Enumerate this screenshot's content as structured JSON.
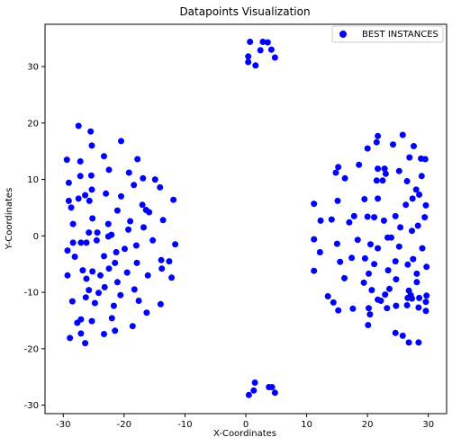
{
  "chart_data": {
    "type": "scatter",
    "title": "Datapoints Visualization",
    "xlabel": "X-Coordinates",
    "ylabel": "Y-Coordinates",
    "xlim": [
      -33,
      33
    ],
    "ylim": [
      -31.5,
      37.5
    ],
    "xticks": [
      -30,
      -20,
      -10,
      0,
      10,
      20,
      30
    ],
    "yticks": [
      -30,
      -20,
      -10,
      0,
      10,
      20,
      30
    ],
    "grid": false,
    "legend": "top-right",
    "series": [
      {
        "name": "BEST INSTANCES",
        "color": "#0000ff",
        "points": [
          [
            0.7,
            34.4
          ],
          [
            2.8,
            34.4
          ],
          [
            3.6,
            34.3
          ],
          [
            0.4,
            31.8
          ],
          [
            2.4,
            32.9
          ],
          [
            4.2,
            33
          ],
          [
            4.8,
            31.6
          ],
          [
            0.4,
            30.8
          ],
          [
            1.6,
            30.2
          ],
          [
            1.5,
            -26
          ],
          [
            3.8,
            -26.8
          ],
          [
            4.3,
            -26.8
          ],
          [
            1.3,
            -27.4
          ],
          [
            0.5,
            -28.2
          ],
          [
            4.8,
            -27.8
          ],
          [
            -27.5,
            19.5
          ],
          [
            -25.5,
            18.5
          ],
          [
            -25.3,
            16
          ],
          [
            -20.5,
            16.8
          ],
          [
            -17.8,
            13.6
          ],
          [
            -29.4,
            13.5
          ],
          [
            -27.2,
            13.2
          ],
          [
            -23.3,
            14.1
          ],
          [
            -19.2,
            11.2
          ],
          [
            -22.5,
            11.7
          ],
          [
            -16.9,
            10.2
          ],
          [
            -29.1,
            9.4
          ],
          [
            -27.2,
            10.6
          ],
          [
            -25.4,
            10.7
          ],
          [
            -14.9,
            10
          ],
          [
            -18.4,
            9
          ],
          [
            -25.3,
            8.2
          ],
          [
            -14.1,
            8.6
          ],
          [
            -26.4,
            7.2
          ],
          [
            -27.5,
            6.6
          ],
          [
            -25.7,
            6.2
          ],
          [
            -23,
            7.5
          ],
          [
            -20.5,
            7
          ],
          [
            -11.9,
            6.4
          ],
          [
            -29.1,
            6.2
          ],
          [
            -28.7,
            5
          ],
          [
            -21.1,
            4.5
          ],
          [
            -17,
            5.5
          ],
          [
            -16.4,
            4.6
          ],
          [
            -15.9,
            4.2
          ],
          [
            -13.6,
            2.8
          ],
          [
            -25.2,
            3.1
          ],
          [
            -19,
            2.6
          ],
          [
            -22.6,
            2.1
          ],
          [
            -28.4,
            2.1
          ],
          [
            -25.8,
            0.6
          ],
          [
            -24.4,
            0.6
          ],
          [
            -22.1,
            0.2
          ],
          [
            -19.3,
            1.1
          ],
          [
            -16.8,
            1.5
          ],
          [
            -29.3,
            -2.6
          ],
          [
            -28.4,
            -1.2
          ],
          [
            -27.1,
            -1.2
          ],
          [
            -26.2,
            -1.2
          ],
          [
            -24.5,
            -0.8
          ],
          [
            -22.6,
            -0.1
          ],
          [
            -15.3,
            -0.8
          ],
          [
            -19.9,
            -2.3
          ],
          [
            -11.6,
            -1.5
          ],
          [
            -18,
            -1.7
          ],
          [
            -21.3,
            -2.9
          ],
          [
            -23.3,
            -3.6
          ],
          [
            -28.1,
            -3.7
          ],
          [
            -17.9,
            -4.8
          ],
          [
            -21.5,
            -4.8
          ],
          [
            -13.9,
            -4.3
          ],
          [
            -12.6,
            -4.5
          ],
          [
            -13.8,
            -5.8
          ],
          [
            -26.8,
            -6.1
          ],
          [
            -25.2,
            -6.3
          ],
          [
            -29.3,
            -7
          ],
          [
            -22.5,
            -5.8
          ],
          [
            -19.5,
            -6.5
          ],
          [
            -16.1,
            -7
          ],
          [
            -23.9,
            -7
          ],
          [
            -12.2,
            -7.4
          ],
          [
            -26.2,
            -7.6
          ],
          [
            -21.1,
            -8.2
          ],
          [
            -25.8,
            -9.6
          ],
          [
            -24.2,
            -10.1
          ],
          [
            -23.2,
            -9.1
          ],
          [
            -18.3,
            -9.5
          ],
          [
            -20.6,
            -10.5
          ],
          [
            -26.3,
            -10.9
          ],
          [
            -24.8,
            -11.9
          ],
          [
            -17.6,
            -11.5
          ],
          [
            -14,
            -12.1
          ],
          [
            -28.5,
            -11.6
          ],
          [
            -21.7,
            -12.4
          ],
          [
            -16.3,
            -13.6
          ],
          [
            -25.3,
            -15.1
          ],
          [
            -27.1,
            -14.8
          ],
          [
            -27.7,
            -15.4
          ],
          [
            -22,
            -14.6
          ],
          [
            -18.6,
            -16
          ],
          [
            -23.3,
            -17.4
          ],
          [
            -21.5,
            -16.8
          ],
          [
            -27.1,
            -17.3
          ],
          [
            -28.9,
            -18.1
          ],
          [
            -26.4,
            -19
          ],
          [
            21.7,
            17.7
          ],
          [
            25.8,
            17.9
          ],
          [
            21.5,
            16.6
          ],
          [
            24.2,
            16.2
          ],
          [
            27.6,
            15.9
          ],
          [
            20,
            15.5
          ],
          [
            26.9,
            13.9
          ],
          [
            28.8,
            13.7
          ],
          [
            15.2,
            12.2
          ],
          [
            21.7,
            11.9
          ],
          [
            22.8,
            11.9
          ],
          [
            29.5,
            13.6
          ],
          [
            18.6,
            12.6
          ],
          [
            14.8,
            11.2
          ],
          [
            25.2,
            11.5
          ],
          [
            23,
            11
          ],
          [
            16.3,
            10.2
          ],
          [
            21.5,
            9.8
          ],
          [
            22.5,
            9.8
          ],
          [
            26.5,
            9.7
          ],
          [
            28.9,
            10.6
          ],
          [
            28,
            8.2
          ],
          [
            28.5,
            7.3
          ],
          [
            19.5,
            6.5
          ],
          [
            21.7,
            6.6
          ],
          [
            29.6,
            5.4
          ],
          [
            26.3,
            5.5
          ],
          [
            15.1,
            6.2
          ],
          [
            11.2,
            5.7
          ],
          [
            27.4,
            6.6
          ],
          [
            17,
            2.4
          ],
          [
            17.8,
            3.5
          ],
          [
            12.3,
            2.7
          ],
          [
            24.6,
            3.5
          ],
          [
            14.1,
            2.9
          ],
          [
            20,
            3.4
          ],
          [
            21.1,
            3.3
          ],
          [
            22.7,
            2.7
          ],
          [
            29.4,
            3.3
          ],
          [
            28.3,
            1.8
          ],
          [
            25.4,
            1.5
          ],
          [
            27.3,
            0.9
          ],
          [
            11.2,
            -0.6
          ],
          [
            15,
            -1.4
          ],
          [
            18.4,
            -0.7
          ],
          [
            23.3,
            -0.3
          ],
          [
            23.9,
            -0.3
          ],
          [
            20.5,
            -1.5
          ],
          [
            25.2,
            -1.9
          ],
          [
            21.7,
            -2.2
          ],
          [
            29,
            -2.2
          ],
          [
            12.2,
            -2.9
          ],
          [
            17.4,
            -3.9
          ],
          [
            19.6,
            -4
          ],
          [
            27.5,
            -4.1
          ],
          [
            24.6,
            -4.5
          ],
          [
            15.5,
            -4.6
          ],
          [
            21.1,
            -5
          ],
          [
            26.6,
            -5.1
          ],
          [
            29.7,
            -5.5
          ],
          [
            11.2,
            -6.2
          ],
          [
            23.4,
            -6.1
          ],
          [
            20.2,
            -6.7
          ],
          [
            28.1,
            -6.7
          ],
          [
            16.2,
            -7.5
          ],
          [
            24.7,
            -7.7
          ],
          [
            19.4,
            -8.3
          ],
          [
            28.1,
            -8.2
          ],
          [
            26.8,
            -9.7
          ],
          [
            20.7,
            -9.6
          ],
          [
            23.6,
            -9.4
          ],
          [
            27.1,
            -10.5
          ],
          [
            22.9,
            -10.4
          ],
          [
            29.7,
            -10.6
          ],
          [
            13.5,
            -10.7
          ],
          [
            26.6,
            -11
          ],
          [
            27.3,
            -11.1
          ],
          [
            21.7,
            -11.3
          ],
          [
            28.5,
            -11
          ],
          [
            22.2,
            -11.5
          ],
          [
            14.4,
            -11.8
          ],
          [
            29.6,
            -11.7
          ],
          [
            26.5,
            -12.3
          ],
          [
            24.7,
            -12.4
          ],
          [
            20.2,
            -12.8
          ],
          [
            17.6,
            -12.9
          ],
          [
            23.2,
            -12.8
          ],
          [
            15.2,
            -13.2
          ],
          [
            28.4,
            -12.7
          ],
          [
            29.6,
            -13.3
          ],
          [
            20.4,
            -13.9
          ],
          [
            20.1,
            -15.8
          ],
          [
            24.6,
            -17.2
          ],
          [
            25.8,
            -17.7
          ],
          [
            26.8,
            -18.9
          ],
          [
            28.4,
            -18.9
          ]
        ]
      }
    ]
  }
}
